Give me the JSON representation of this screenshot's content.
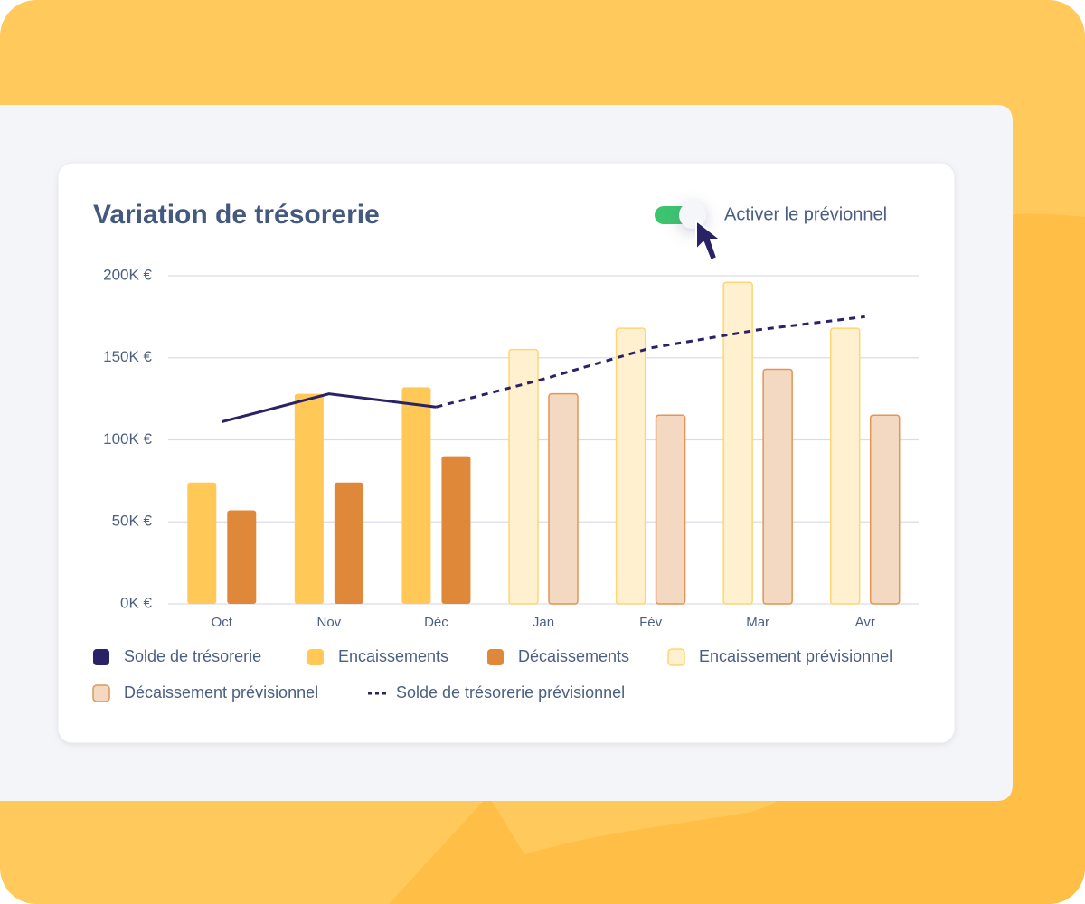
{
  "chart_data": {
    "type": "bar",
    "title": "Variation de trésorerie",
    "toggle_label": "Activer le prévionnel",
    "categories": [
      "Oct",
      "Nov",
      "Déc",
      "Jan",
      "Fév",
      "Mar",
      "Avr"
    ],
    "ylim": [
      0,
      200000
    ],
    "yticks": [
      {
        "value": 0,
        "label": "0K €"
      },
      {
        "value": 50000,
        "label": "50K €"
      },
      {
        "value": 100000,
        "label": "100K €"
      },
      {
        "value": 150000,
        "label": "150K €"
      },
      {
        "value": 200000,
        "label": "200K €"
      }
    ],
    "grid": true,
    "series": [
      {
        "name": "Solde de trésorerie",
        "type": "line",
        "color": "#2a2266",
        "values": [
          111000,
          128000,
          120000,
          null,
          null,
          null,
          null
        ]
      },
      {
        "name": "Encaissements",
        "type": "bar",
        "color": "#ffc857",
        "values": [
          74000,
          128000,
          132000,
          null,
          null,
          null,
          null
        ]
      },
      {
        "name": "Décaissements",
        "type": "bar",
        "color": "#e0883a",
        "values": [
          57000,
          74000,
          90000,
          null,
          null,
          null,
          null
        ]
      },
      {
        "name": "Encaissement prévisionnel",
        "type": "bar",
        "color": "#fff0cf",
        "stroke": "#ffd575",
        "values": [
          null,
          null,
          null,
          155000,
          168000,
          196000,
          168000
        ]
      },
      {
        "name": "Décaissement prévisionnel",
        "type": "bar",
        "color": "#f4d9c2",
        "stroke": "#e39553",
        "values": [
          null,
          null,
          null,
          128000,
          115000,
          143000,
          115000
        ]
      },
      {
        "name": "Solde de trésorerie prévisionnel",
        "type": "line",
        "dashed": true,
        "color": "#2a2266",
        "values": [
          null,
          null,
          120000,
          137000,
          156000,
          167000,
          175000
        ]
      }
    ]
  }
}
